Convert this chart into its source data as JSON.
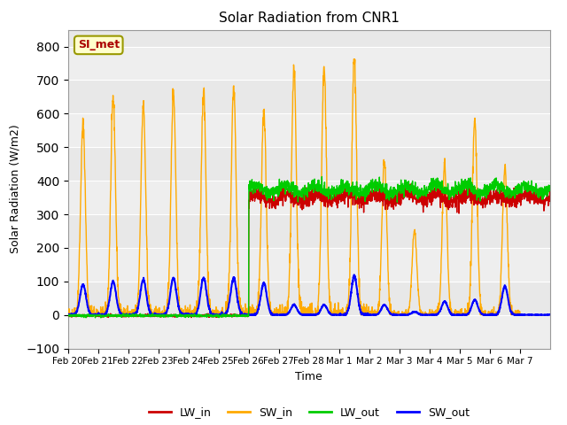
{
  "title": "Solar Radiation from CNR1",
  "xlabel": "Time",
  "ylabel": "Solar Radiation (W/m2)",
  "ylim": [
    -100,
    850
  ],
  "yticks": [
    -100,
    0,
    100,
    200,
    300,
    400,
    500,
    600,
    700,
    800
  ],
  "site_label": "SI_met",
  "colors": {
    "LW_in": "#cc0000",
    "SW_in": "#ffaa00",
    "LW_out": "#00cc00",
    "SW_out": "#0000ff"
  },
  "xtick_labels": [
    "Feb 20",
    "Feb 21",
    "Feb 22",
    "Feb 23",
    "Feb 24",
    "Feb 25",
    "Feb 26",
    "Feb 27",
    "Feb 28",
    "Mar 1",
    "Mar 2",
    "Mar 3",
    "Mar 4",
    "Mar 5",
    "Mar 6",
    "Mar 7"
  ],
  "background_color": "#e8e8e8",
  "band_color": "#d8d8d8",
  "n_days": 16,
  "pts_per_day": 144,
  "sw_in_peaks": [
    570,
    645,
    625,
    665,
    668,
    680,
    610,
    730,
    735,
    770,
    460,
    250,
    450,
    580,
    440,
    0
  ],
  "sw_out_peaks": [
    90,
    100,
    105,
    110,
    110,
    110,
    95,
    30,
    30,
    115,
    30,
    10,
    40,
    45,
    85,
    0
  ],
  "transition_day": 6
}
